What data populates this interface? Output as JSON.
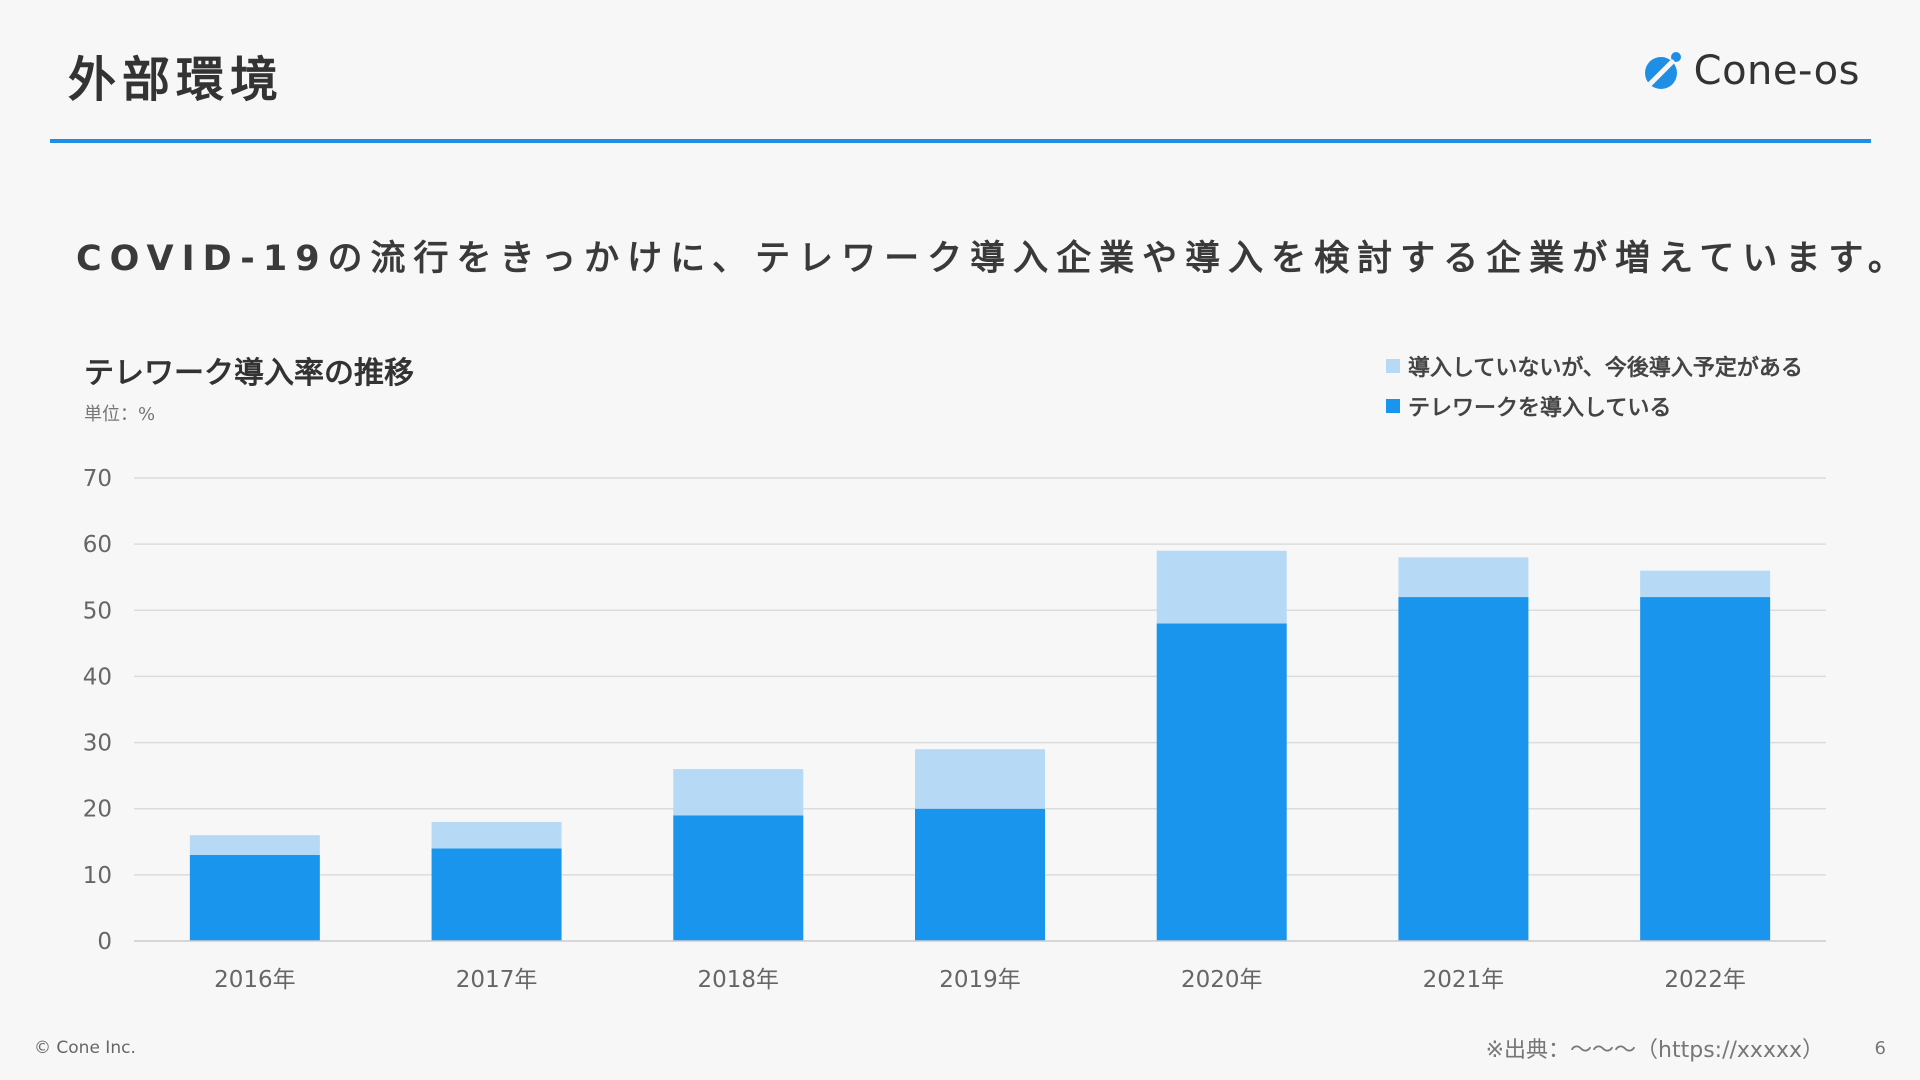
{
  "header": {
    "title": "外部環境",
    "logo_text": "Cone-os",
    "logo_icon": "cone-os-logo-icon"
  },
  "headline": "COVID-19の流行をきっかけに、テレワーク導入企業や導入を検討する企業が増えています。",
  "chart_data": {
    "type": "bar",
    "stacked": true,
    "title": "テレワーク導入率の推移",
    "unit_label": "単位：%",
    "categories": [
      "2016年",
      "2017年",
      "2018年",
      "2019年",
      "2020年",
      "2021年",
      "2022年"
    ],
    "series": [
      {
        "name": "テレワークを導入している",
        "color": "#1a95ee",
        "values": [
          13,
          14,
          19,
          20,
          48,
          52,
          52
        ]
      },
      {
        "name": "導入していないが、今後導入予定がある",
        "color": "#b6daf6",
        "values": [
          3,
          4,
          7,
          9,
          11,
          6,
          4
        ]
      }
    ],
    "ylim": [
      0,
      70
    ],
    "yticks": [
      0,
      10,
      20,
      30,
      40,
      50,
      60,
      70
    ],
    "grid": true,
    "legend_position": "top-right"
  },
  "footer": {
    "copyright": "© Cone Inc.",
    "source": "※出典：〜〜〜（https://xxxxx）",
    "page_number": "6"
  }
}
